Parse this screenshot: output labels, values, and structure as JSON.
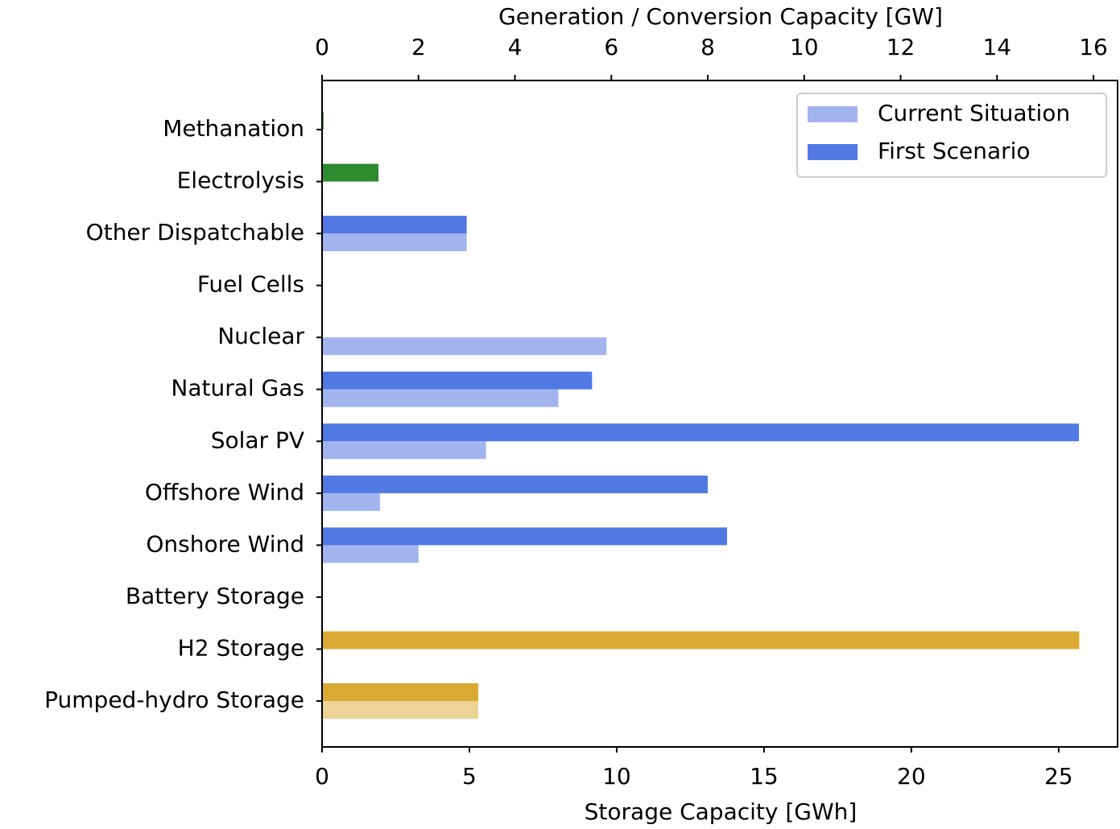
{
  "chart_data": {
    "type": "barh",
    "x2label": "Generation / Conversion Capacity [GW]",
    "xlabel": "Storage Capacity [GWh]",
    "categories": [
      "Methanation",
      "Electrolysis",
      "Other Dispatchable",
      "Fuel Cells",
      "Nuclear",
      "Natural Gas",
      "Solar PV",
      "Offshore Wind",
      "Onshore Wind",
      "Battery Storage",
      "H2 Storage",
      "Pumped-hydro Storage"
    ],
    "category_axis": [
      "x2",
      "x2",
      "x2",
      "x2",
      "x2",
      "x2",
      "x2",
      "x2",
      "x2",
      "x",
      "x",
      "x"
    ],
    "series": [
      {
        "name": "Current Situation",
        "color": "#a2b4ee",
        "values": [
          0,
          0,
          3.0,
          0,
          5.9,
          4.9,
          3.4,
          1.2,
          2.0,
          0,
          0,
          5.3
        ],
        "bar_colors": [
          "#2e8b2e",
          "#2e8b2e",
          "#a2b4ee",
          "#a2b4ee",
          "#a2b4ee",
          "#a2b4ee",
          "#a2b4ee",
          "#a2b4ee",
          "#a2b4ee",
          "#eed396",
          "#eed396",
          "#eed396"
        ]
      },
      {
        "name": "First Scenario",
        "color": "#5179e3",
        "values": [
          0.03,
          1.17,
          3.0,
          0,
          0,
          5.6,
          15.7,
          8.0,
          8.4,
          0,
          25.7,
          5.3
        ],
        "bar_colors": [
          "#2e8b2e",
          "#2e8b2e",
          "#5179e3",
          "#5179e3",
          "#5179e3",
          "#5179e3",
          "#5179e3",
          "#5179e3",
          "#5179e3",
          "#daa932",
          "#daa932",
          "#daa932"
        ]
      }
    ],
    "xlim": [
      0,
      27
    ],
    "xticks": [
      0,
      5,
      10,
      15,
      20,
      25
    ],
    "x2lim": [
      0,
      16.5
    ],
    "x2ticks": [
      0,
      2,
      4,
      6,
      8,
      10,
      12,
      14,
      16
    ],
    "legend": "upper right"
  }
}
